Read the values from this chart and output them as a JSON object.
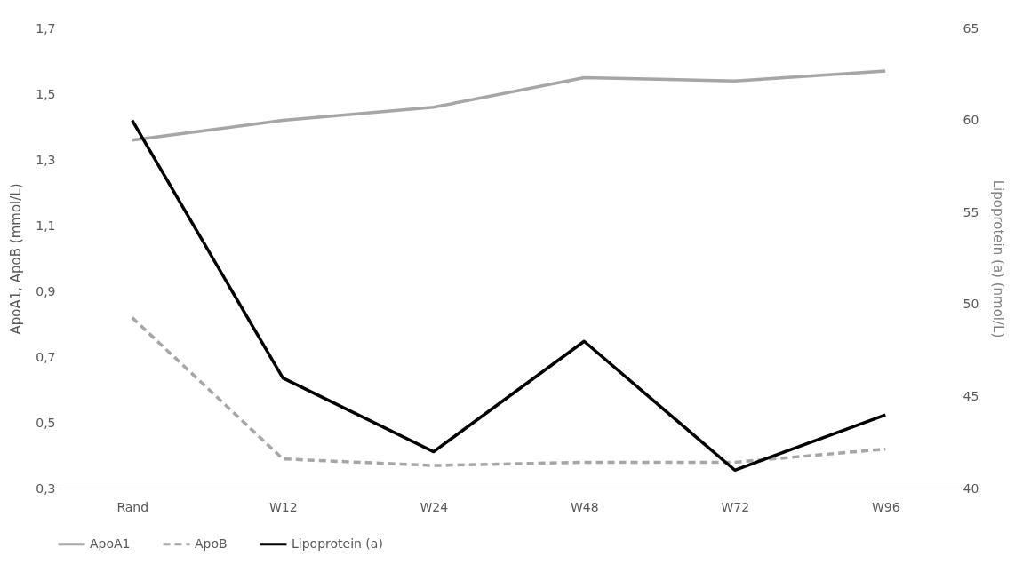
{
  "chart_data": {
    "type": "line",
    "categories": [
      "Rand",
      "W12",
      "W24",
      "W48",
      "W72",
      "W96"
    ],
    "ylabel": "ApoA1, ApoB (mmol/L)",
    "y2label": "Lipoprotein (a) (nmol/L)",
    "series": [
      {
        "name": "ApoA1",
        "color": "#a6a6a6",
        "line_style": "solid",
        "values": [
          1.36,
          1.42,
          1.46,
          1.55,
          1.54,
          1.57
        ]
      },
      {
        "name": "ApoB",
        "color": "#a6a6a6",
        "line_style": "dashed",
        "values": [
          0.82,
          0.39,
          0.37,
          0.38,
          0.38,
          0.42
        ]
      },
      {
        "name": "Lipoprotein (a)",
        "color": "#000000",
        "line_style": "solid",
        "axis": "y2",
        "values": [
          60,
          46,
          42,
          48,
          41,
          44
        ]
      }
    ],
    "ylim": [
      0.3,
      1.7
    ],
    "yticks": [
      {
        "value": 0.3,
        "label": "0,3"
      },
      {
        "value": 0.5,
        "label": "0,5"
      },
      {
        "value": 0.7,
        "label": "0,7"
      },
      {
        "value": 0.9,
        "label": "0,9"
      },
      {
        "value": 1.1,
        "label": "1,1"
      },
      {
        "value": 1.3,
        "label": "1,3"
      },
      {
        "value": 1.5,
        "label": "1,5"
      },
      {
        "value": 1.7,
        "label": "1,7"
      }
    ],
    "y2lim": [
      40,
      65
    ],
    "y2ticks": [
      40,
      45,
      50,
      55,
      60,
      65
    ],
    "grid": false,
    "legend": "bottom",
    "marker": "none"
  }
}
